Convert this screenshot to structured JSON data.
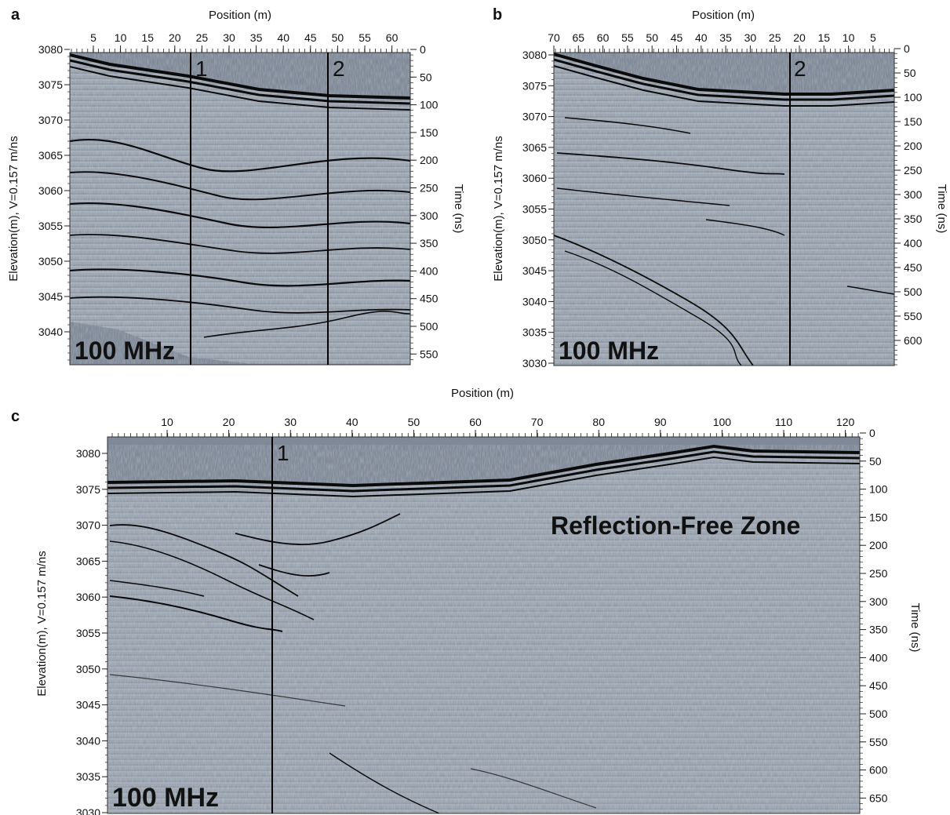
{
  "panels": {
    "a": {
      "panel_label": "a",
      "x_title": "Position (m)",
      "left_title": "Elevation(m), V=0.157 m/ns",
      "right_title": "Time (ns)",
      "x_ticks": [
        "5",
        "10",
        "15",
        "20",
        "25",
        "30",
        "35",
        "40",
        "45",
        "50",
        "55",
        "60"
      ],
      "elev_ticks": [
        "3080",
        "3075",
        "3070",
        "3065",
        "3060",
        "3055",
        "3050",
        "3045",
        "3040"
      ],
      "time_ticks": [
        "0",
        "50",
        "100",
        "150",
        "200",
        "250",
        "300",
        "350",
        "400",
        "450",
        "500",
        "550"
      ],
      "markers": [
        "1",
        "2"
      ],
      "frequency": "100 MHz"
    },
    "b": {
      "panel_label": "b",
      "x_title": "Position (m)",
      "left_title": "Elevation(m), V=0.157 m/ns",
      "right_title": "Time (ns)",
      "x_ticks": [
        "70",
        "65",
        "60",
        "55",
        "50",
        "45",
        "40",
        "35",
        "30",
        "25",
        "20",
        "15",
        "10",
        "5"
      ],
      "elev_ticks": [
        "3080",
        "3075",
        "3070",
        "3065",
        "3060",
        "3055",
        "3050",
        "3045",
        "3040",
        "3035",
        "3030"
      ],
      "time_ticks": [
        "0",
        "50",
        "100",
        "150",
        "200",
        "250",
        "300",
        "350",
        "400",
        "450",
        "500",
        "550",
        "600"
      ],
      "markers": [
        "2"
      ],
      "frequency": "100 MHz"
    },
    "c": {
      "panel_label": "c",
      "x_title": "Position (m)",
      "left_title": "Elevation(m), V=0.157 m/ns",
      "right_title": "Time (ns)",
      "x_ticks": [
        "10",
        "20",
        "30",
        "40",
        "50",
        "60",
        "70",
        "80",
        "90",
        "100",
        "110",
        "120"
      ],
      "elev_ticks": [
        "3080",
        "3075",
        "3070",
        "3065",
        "3060",
        "3055",
        "3050",
        "3045",
        "3040",
        "3035",
        "3030"
      ],
      "time_ticks": [
        "0",
        "50",
        "100",
        "150",
        "200",
        "250",
        "300",
        "350",
        "400",
        "450",
        "500",
        "550",
        "600",
        "650"
      ],
      "markers": [
        "1"
      ],
      "frequency": "100 MHz",
      "zone_label": "Reflection-Free Zone"
    }
  },
  "colors": {
    "air": "#7f8997",
    "ground": "#9aa3af",
    "reflector": "#0b0b0b",
    "marker_line": "#000000"
  }
}
